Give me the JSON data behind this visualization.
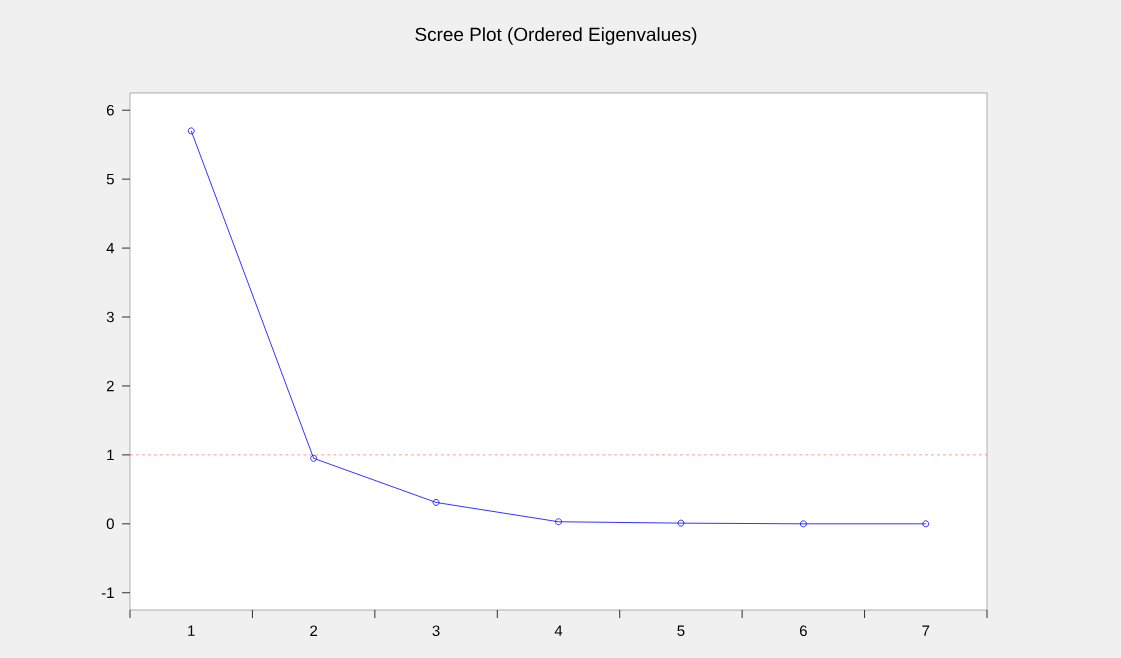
{
  "chart_data": {
    "type": "line",
    "title": "Scree Plot (Ordered Eigenvalues)",
    "categories": [
      "1",
      "2",
      "3",
      "4",
      "5",
      "6",
      "7"
    ],
    "series": [
      {
        "color": "#0000ff",
        "values": [
          5.7,
          0.95,
          0.31,
          0.03,
          0.01,
          0.0,
          0.0
        ]
      }
    ],
    "ylim": [
      -1.25,
      6.25
    ],
    "yticks": [
      -1,
      0,
      1,
      2,
      3,
      4,
      5,
      6
    ],
    "ref_lines": [
      {
        "axis": "y",
        "value": 1,
        "color": "#ff0000",
        "line_style": "dashed"
      }
    ],
    "marker": "circle",
    "line_style": "solid",
    "grid": false
  }
}
